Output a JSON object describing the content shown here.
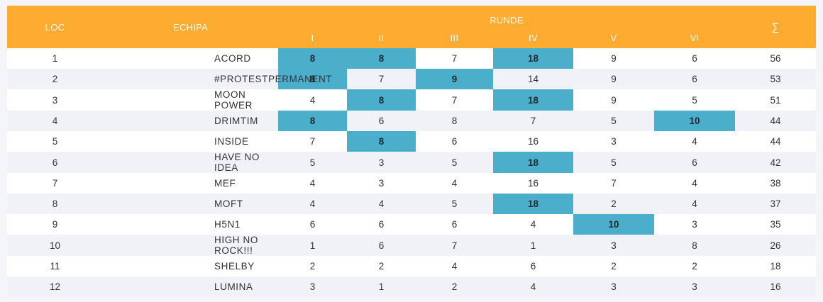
{
  "header": {
    "loc": "LOC",
    "echipa": "ECHIPA",
    "runde": "RUNDE",
    "rounds": [
      "I",
      "II",
      "III",
      "IV",
      "V",
      "VI"
    ],
    "sum": "∑"
  },
  "colors": {
    "header_bg": "#feab31",
    "highlight": "#4baecb",
    "row_alt": "#f1f2f8"
  },
  "rows": [
    {
      "loc": "1",
      "team": "ACORD",
      "scores": [
        "8",
        "8",
        "7",
        "18",
        "9",
        "6"
      ],
      "best": [
        0,
        1,
        3
      ],
      "total": "56"
    },
    {
      "loc": "2",
      "team": "#PROTESTPERMANENT",
      "scores": [
        "8",
        "7",
        "9",
        "14",
        "9",
        "6"
      ],
      "best": [
        0,
        2
      ],
      "total": "53"
    },
    {
      "loc": "3",
      "team": "MOON POWER",
      "scores": [
        "4",
        "8",
        "7",
        "18",
        "9",
        "5"
      ],
      "best": [
        1,
        3
      ],
      "total": "51"
    },
    {
      "loc": "4",
      "team": "DRIMTIM",
      "scores": [
        "8",
        "6",
        "8",
        "7",
        "5",
        "10"
      ],
      "best": [
        0,
        5
      ],
      "total": "44"
    },
    {
      "loc": "5",
      "team": "INSIDE",
      "scores": [
        "7",
        "8",
        "6",
        "16",
        "3",
        "4"
      ],
      "best": [
        1
      ],
      "total": "44"
    },
    {
      "loc": "6",
      "team": "HAVE NO IDEA",
      "scores": [
        "5",
        "3",
        "5",
        "18",
        "5",
        "6"
      ],
      "best": [
        3
      ],
      "total": "42"
    },
    {
      "loc": "7",
      "team": "MEF",
      "scores": [
        "4",
        "3",
        "4",
        "16",
        "7",
        "4"
      ],
      "best": [],
      "total": "38"
    },
    {
      "loc": "8",
      "team": "MOFT",
      "scores": [
        "4",
        "4",
        "5",
        "18",
        "2",
        "4"
      ],
      "best": [
        3
      ],
      "total": "37"
    },
    {
      "loc": "9",
      "team": "H5N1",
      "scores": [
        "6",
        "6",
        "6",
        "4",
        "10",
        "3"
      ],
      "best": [
        4
      ],
      "total": "35"
    },
    {
      "loc": "10",
      "team": "HIGH NO ROCK!!!",
      "scores": [
        "1",
        "6",
        "7",
        "1",
        "3",
        "8"
      ],
      "best": [],
      "total": "26"
    },
    {
      "loc": "11",
      "team": "SHELBY",
      "scores": [
        "2",
        "2",
        "4",
        "6",
        "2",
        "2"
      ],
      "best": [],
      "total": "18"
    },
    {
      "loc": "12",
      "team": "LUMINA",
      "scores": [
        "3",
        "1",
        "2",
        "4",
        "3",
        "3"
      ],
      "best": [],
      "total": "16"
    }
  ]
}
